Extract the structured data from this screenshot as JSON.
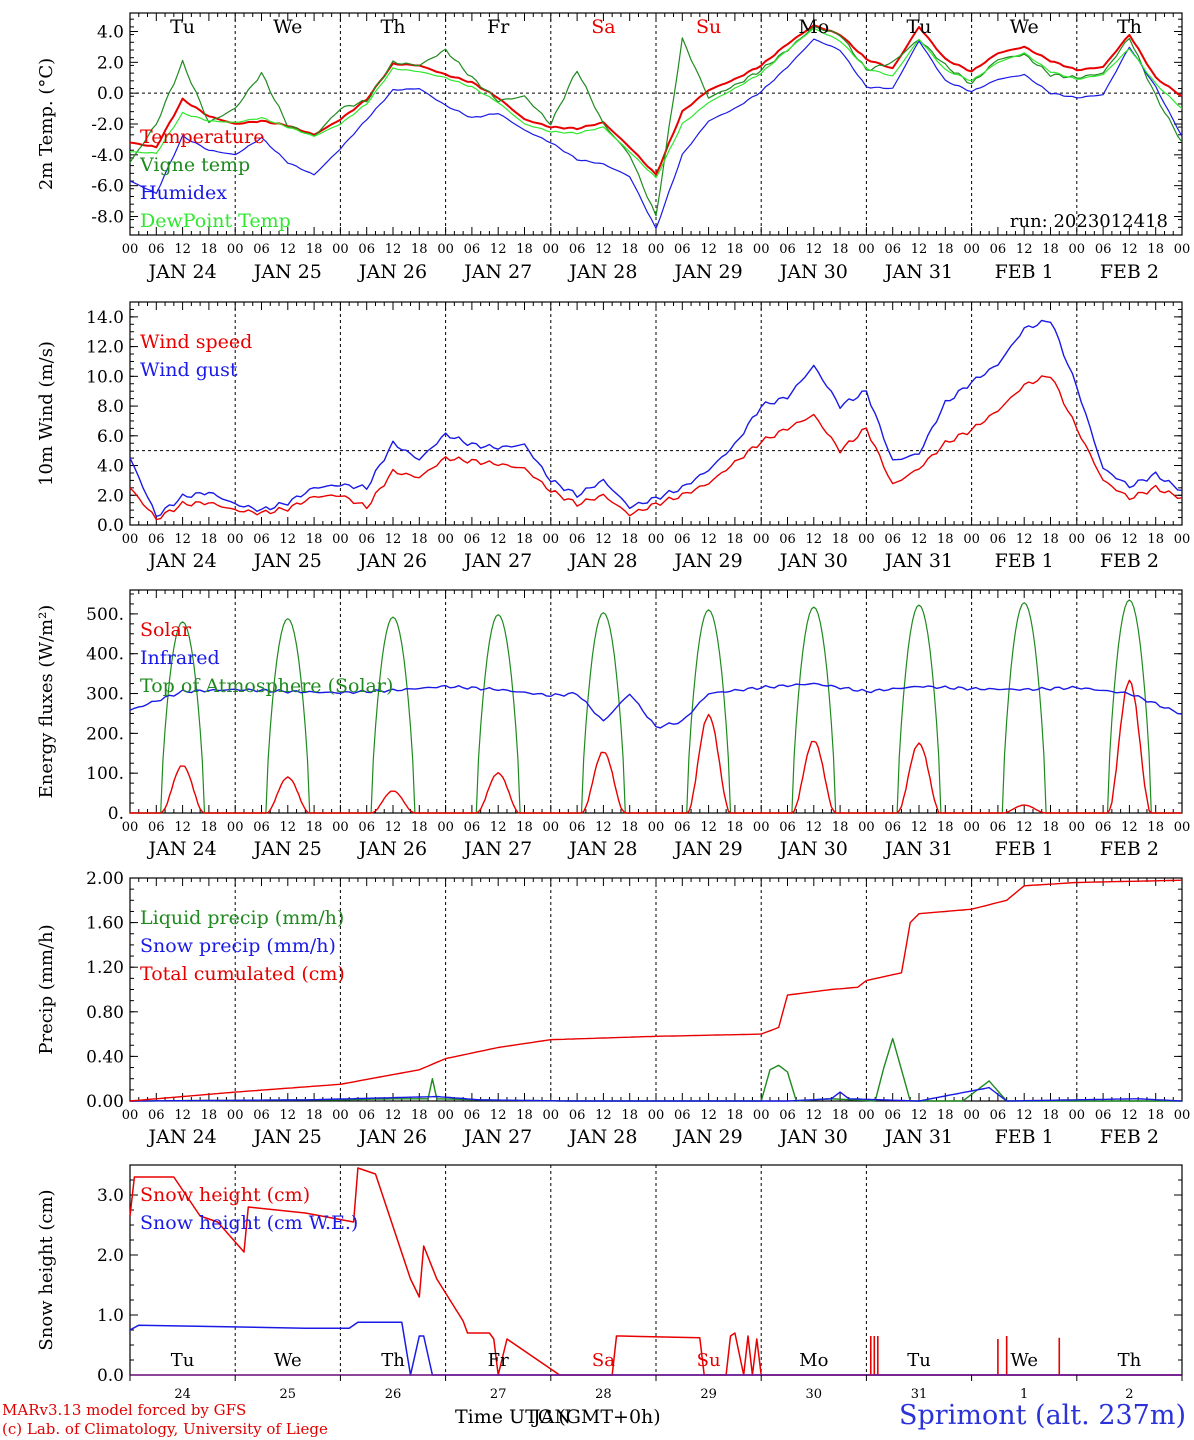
{
  "colors": {
    "red": "#e80000",
    "green": "#1f8a1f",
    "blue": "#1a1ae6",
    "lime": "#2ee82e",
    "axis": "#000000"
  },
  "days": [
    "Tu",
    "We",
    "Th",
    "Fr",
    "Sa",
    "Su",
    "Mo",
    "Tu",
    "We",
    "Th"
  ],
  "weekend_days": [
    "Sa",
    "Su"
  ],
  "date_labels": [
    "JAN 24",
    "JAN 25",
    "JAN 26",
    "JAN 27",
    "JAN 28",
    "JAN 29",
    "JAN 30",
    "JAN 31",
    "FEB  1",
    "FEB  2"
  ],
  "day_numbers": [
    "24",
    "25",
    "26",
    "27",
    "28",
    "29",
    "30",
    "31",
    "1",
    "2"
  ],
  "hour_labels": [
    "00",
    "06",
    "12",
    "18"
  ],
  "run_label": "run: 2023012418",
  "footer": {
    "credit_line1": "MARv3.13 model forced by GFS",
    "credit_line2": "(c) Lab. of Climatology, University of Liege",
    "xaxis_title": "Time UTC (GMT+0h)",
    "xaxis_month": "JAN",
    "site": "Sprimont (alt. 237m)"
  },
  "chart_data": [
    {
      "type": "line",
      "ylabel": "2m Temp. (°C)",
      "ylim": [
        -9.2,
        5.2
      ],
      "yticks": [
        "4.0",
        "2.0",
        "0.0",
        "-2.0",
        "-4.0",
        "-6.0",
        "-8.0"
      ],
      "ytick_values": [
        4,
        2,
        0,
        -2,
        -4,
        -6,
        -8
      ],
      "reference_line": 0,
      "x_hours": [
        0,
        6,
        12,
        18,
        24,
        30,
        36,
        42,
        48,
        54,
        60,
        66,
        72,
        78,
        84,
        90,
        96,
        102,
        108,
        114,
        120,
        126,
        132,
        138,
        144,
        150,
        156,
        162,
        168,
        174,
        180,
        186,
        192,
        198,
        204,
        210,
        216,
        222,
        228,
        234,
        240
      ],
      "series": [
        {
          "name": "Temperature",
          "color": "red",
          "values": [
            -3.2,
            -3.5,
            -0.4,
            -1.5,
            -2.0,
            -1.8,
            -2.1,
            -2.7,
            -1.7,
            -0.4,
            1.9,
            1.8,
            1.2,
            0.7,
            -0.3,
            -1.7,
            -2.2,
            -2.3,
            -1.9,
            -3.5,
            -5.3,
            -1.2,
            0.2,
            0.9,
            1.8,
            3.2,
            4.4,
            3.8,
            2.2,
            1.6,
            4.3,
            2.2,
            1.4,
            2.6,
            3.0,
            2.1,
            1.5,
            1.7,
            3.8,
            1.0,
            -0.2
          ]
        },
        {
          "name": "Vigne temp",
          "color": "green",
          "values": [
            -4.5,
            -2.0,
            2.0,
            -1.9,
            -1.0,
            1.3,
            -2.1,
            -2.8,
            -1.0,
            -0.5,
            2.0,
            1.8,
            2.8,
            1.0,
            -0.5,
            -0.2,
            -2.0,
            1.5,
            -2.0,
            -4.0,
            -8.0,
            3.5,
            -0.3,
            0.5,
            1.5,
            2.8,
            4.3,
            3.8,
            1.5,
            2.0,
            3.5,
            1.8,
            0.6,
            2.2,
            2.5,
            1.2,
            1.0,
            1.3,
            3.6,
            -0.2,
            -3.2
          ]
        },
        {
          "name": "Humidex",
          "color": "blue",
          "values": [
            -5.7,
            -6.5,
            -2.8,
            -3.7,
            -4.0,
            -2.9,
            -4.5,
            -5.3,
            -3.6,
            -1.7,
            0.2,
            0.3,
            -0.8,
            -1.6,
            -1.3,
            -2.4,
            -3.2,
            -4.3,
            -4.6,
            -5.4,
            -8.8,
            -4.0,
            -1.8,
            -1.0,
            0.1,
            1.7,
            3.5,
            2.8,
            0.4,
            0.3,
            3.4,
            0.8,
            0.1,
            0.9,
            1.2,
            0.0,
            -0.3,
            -0.1,
            3.0,
            0.4,
            -2.8
          ]
        },
        {
          "name": "DewPoint Temp",
          "color": "lime",
          "values": [
            -3.8,
            -3.9,
            -1.3,
            -1.8,
            -1.9,
            -1.6,
            -2.2,
            -2.8,
            -2.0,
            -0.7,
            1.6,
            1.4,
            1.0,
            0.4,
            -0.6,
            -2.0,
            -2.5,
            -2.6,
            -2.2,
            -3.8,
            -5.5,
            -2.0,
            -0.6,
            0.3,
            1.3,
            2.8,
            4.2,
            3.4,
            1.6,
            1.1,
            3.5,
            1.5,
            0.8,
            2.0,
            2.6,
            1.4,
            0.9,
            1.2,
            2.9,
            0.6,
            -1.0
          ]
        }
      ]
    },
    {
      "type": "line",
      "ylabel": "10m Wind (m/s)",
      "ylim": [
        0,
        15
      ],
      "yticks": [
        "14.0",
        "12.0",
        "10.0",
        "8.0",
        "6.0",
        "4.0",
        "2.0",
        "0.0"
      ],
      "ytick_values": [
        14,
        12,
        10,
        8,
        6,
        4,
        2,
        0
      ],
      "reference_line": 5,
      "x_hours": [
        0,
        6,
        12,
        18,
        24,
        30,
        36,
        42,
        48,
        54,
        60,
        66,
        72,
        78,
        84,
        90,
        96,
        102,
        108,
        114,
        120,
        126,
        132,
        138,
        144,
        150,
        156,
        162,
        168,
        174,
        180,
        186,
        192,
        198,
        204,
        210,
        216,
        222,
        228,
        234,
        240
      ],
      "series": [
        {
          "name": "Wind speed",
          "color": "red",
          "values": [
            2.5,
            0.4,
            1.4,
            1.5,
            1.0,
            0.8,
            1.1,
            1.9,
            2.0,
            1.2,
            3.6,
            3.2,
            4.5,
            4.3,
            4.1,
            3.8,
            2.3,
            1.4,
            2.0,
            0.7,
            1.4,
            2.0,
            2.8,
            4.2,
            5.6,
            6.5,
            7.4,
            5.0,
            6.5,
            2.7,
            3.8,
            5.5,
            6.4,
            7.7,
            9.4,
            10.1,
            6.5,
            3.0,
            1.8,
            2.5,
            1.8
          ]
        },
        {
          "name": "Wind gust",
          "color": "blue",
          "values": [
            4.5,
            0.6,
            1.9,
            2.2,
            1.4,
            1.0,
            1.5,
            2.5,
            2.7,
            2.5,
            5.5,
            4.4,
            6.1,
            5.4,
            5.2,
            5.4,
            3.0,
            2.0,
            3.0,
            1.2,
            1.8,
            2.5,
            3.7,
            5.4,
            8.0,
            8.6,
            10.7,
            8.0,
            9.0,
            4.3,
            4.8,
            8.2,
            9.6,
            10.8,
            13.2,
            13.8,
            9.3,
            3.8,
            2.6,
            3.4,
            2.3
          ]
        }
      ]
    },
    {
      "type": "line",
      "ylabel": "Energy fluxes (W/m²)",
      "ylim": [
        0,
        560
      ],
      "yticks": [
        "500.",
        "400.",
        "300.",
        "200.",
        "100.",
        "0."
      ],
      "ytick_values": [
        500,
        400,
        300,
        200,
        100,
        0
      ],
      "daily_toa_peaks": [
        480,
        488,
        492,
        498,
        503,
        510,
        517,
        522,
        528,
        535
      ],
      "daily_solar_peaks": [
        120,
        90,
        55,
        100,
        155,
        245,
        180,
        175,
        20,
        330
      ],
      "series": [
        {
          "name": "Solar",
          "color": "red"
        },
        {
          "name": "Infrared",
          "color": "blue",
          "x_hours": [
            0,
            12,
            24,
            36,
            48,
            60,
            72,
            84,
            96,
            102,
            108,
            114,
            120,
            126,
            132,
            144,
            156,
            168,
            180,
            192,
            204,
            216,
            228,
            240
          ],
          "values": [
            258,
            305,
            310,
            305,
            302,
            308,
            318,
            310,
            295,
            300,
            230,
            300,
            215,
            230,
            300,
            315,
            325,
            305,
            318,
            312,
            310,
            315,
            300,
            248
          ]
        },
        {
          "name": "Top of Atmosphere (Solar)",
          "color": "green"
        }
      ]
    },
    {
      "type": "line",
      "ylabel": "Precip (mm/h)",
      "ylim": [
        0,
        2.0
      ],
      "yticks": [
        "2.00",
        "1.60",
        "1.20",
        "0.80",
        "0.40",
        "0.00"
      ],
      "ytick_values": [
        2.0,
        1.6,
        1.2,
        0.8,
        0.4,
        0.0
      ],
      "series": [
        {
          "name": "Liquid precip (mm/h)",
          "color": "green",
          "x_hours": [
            0,
            40,
            48,
            60,
            68,
            69,
            70,
            80,
            100,
            140,
            144,
            146,
            148,
            150,
            152,
            160,
            170,
            172,
            174,
            176,
            178,
            190,
            196,
            200,
            240
          ],
          "values": [
            0.0,
            0.01,
            0.01,
            0.02,
            0.02,
            0.2,
            0.02,
            0.01,
            0.0,
            0.0,
            0.0,
            0.28,
            0.32,
            0.26,
            0.0,
            0.02,
            0.0,
            0.3,
            0.56,
            0.28,
            0.0,
            0.0,
            0.18,
            0.0,
            0.0
          ]
        },
        {
          "name": "Snow precip (mm/h)",
          "color": "blue",
          "x_hours": [
            0,
            40,
            60,
            70,
            80,
            100,
            150,
            160,
            162,
            164,
            180,
            196,
            200,
            230,
            240
          ],
          "values": [
            0.0,
            0.01,
            0.03,
            0.04,
            0.01,
            0.0,
            0.0,
            0.02,
            0.08,
            0.02,
            0.0,
            0.12,
            0.0,
            0.02,
            0.0
          ]
        },
        {
          "name": "Total cumulated (cm)",
          "color": "red",
          "x_hours": [
            0,
            24,
            48,
            66,
            72,
            84,
            96,
            120,
            144,
            148,
            150,
            160,
            166,
            168,
            176,
            178,
            180,
            192,
            200,
            204,
            216,
            240
          ],
          "values": [
            0.0,
            0.08,
            0.15,
            0.28,
            0.38,
            0.48,
            0.55,
            0.58,
            0.6,
            0.66,
            0.95,
            1.0,
            1.02,
            1.08,
            1.15,
            1.6,
            1.68,
            1.72,
            1.8,
            1.93,
            1.96,
            1.98
          ]
        }
      ]
    },
    {
      "type": "line",
      "ylabel": "Snow height (cm)",
      "ylim": [
        0,
        3.5
      ],
      "yticks": [
        "3.0",
        "2.0",
        "1.0",
        "0.0"
      ],
      "ytick_values": [
        3,
        2,
        1,
        0
      ],
      "series": [
        {
          "name": "Snow height (cm)",
          "color": "red",
          "x_hours": [
            0,
            1,
            10,
            16,
            20,
            26,
            27,
            40,
            51,
            52,
            56,
            64,
            66,
            67,
            70,
            76,
            77,
            82,
            83,
            84,
            86,
            98,
            99,
            100,
            110,
            111,
            112,
            130,
            131,
            132,
            136,
            137,
            138,
            140,
            141,
            142,
            143,
            144,
            238,
            240
          ],
          "values": [
            2.65,
            3.3,
            3.3,
            2.65,
            2.55,
            2.05,
            2.8,
            2.7,
            2.55,
            3.45,
            3.35,
            1.6,
            1.3,
            2.15,
            1.6,
            0.9,
            0.7,
            0.7,
            0.6,
            0.0,
            0.6,
            0.0,
            0.0,
            0.0,
            0.0,
            0.65,
            0.65,
            0.62,
            0.0,
            0.0,
            0.0,
            0.65,
            0.7,
            0.0,
            0.65,
            0.0,
            0.6,
            0.0,
            0.0,
            0.0
          ]
        },
        {
          "name": "Snow height (cm W.E.)",
          "color": "blue",
          "x_hours": [
            0,
            2,
            40,
            50,
            52,
            62,
            64,
            66,
            67,
            69,
            72,
            240
          ],
          "values": [
            0.75,
            0.83,
            0.78,
            0.78,
            0.88,
            0.88,
            0.0,
            0.65,
            0.65,
            0.0,
            0.0,
            0.0
          ]
        }
      ],
      "spikes": {
        "x_hours": [
          169,
          169.8,
          170.6,
          198,
          200,
          212
        ],
        "values": [
          0.65,
          0.65,
          0.65,
          0.6,
          0.65,
          0.62
        ]
      },
      "xlabel": "Time UTC (GMT+0h)"
    }
  ]
}
